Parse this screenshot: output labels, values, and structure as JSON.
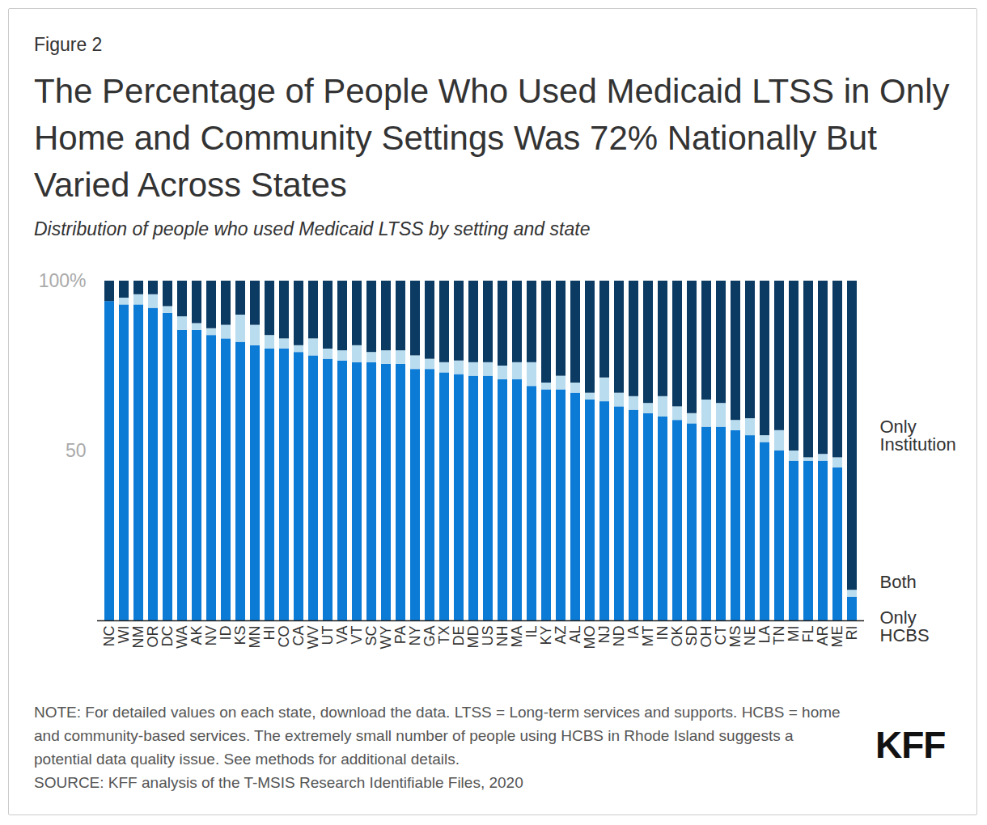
{
  "chart_data": {
    "type": "bar",
    "figure_label": "Figure 2",
    "title": "The Percentage of People Who Used Medicaid LTSS in Only Home and Community Settings Was 72% Nationally But Varied Across States",
    "subtitle": "Distribution of people who used Medicaid LTSS by setting and state",
    "note": "NOTE: For detailed values on each state, download the data. LTSS = Long-term services and supports. HCBS = home and community-based services. The extremely small number of people using HCBS in Rhode Island suggests a potential data quality issue. See methods for additional details.",
    "source": "SOURCE: KFF analysis of the T-MSIS Research Identifiable Files, 2020",
    "logo": "KFF",
    "stacked": true,
    "legend": "right",
    "grid": false,
    "categories": [
      "NC",
      "WI",
      "NM",
      "OR",
      "DC",
      "WA",
      "AK",
      "NV",
      "ID",
      "KS",
      "MN",
      "HI",
      "CO",
      "CA",
      "WV",
      "UT",
      "VA",
      "VT",
      "SC",
      "WY",
      "PA",
      "NY",
      "GA",
      "TX",
      "DE",
      "MD",
      "US",
      "NH",
      "MA",
      "IL",
      "KY",
      "AZ",
      "AL",
      "MO",
      "NJ",
      "ND",
      "IA",
      "MT",
      "IN",
      "OK",
      "SD",
      "OH",
      "CT",
      "MS",
      "NE",
      "LA",
      "TN",
      "MI",
      "FL",
      "AR",
      "ME",
      "RI"
    ],
    "series": [
      {
        "name": "Only HCBS",
        "color": "#0c7bd6",
        "values": [
          94,
          93,
          93,
          92,
          90.5,
          85.5,
          85.5,
          84,
          83,
          82,
          81,
          80,
          80,
          79,
          78,
          77,
          76.5,
          76,
          76,
          75.5,
          75.5,
          74,
          74,
          73,
          72.5,
          72,
          72,
          71,
          71,
          69,
          68,
          68,
          67,
          65,
          64.5,
          63,
          62,
          61,
          60,
          59,
          58,
          57,
          57,
          56,
          54.5,
          52.5,
          50,
          47,
          47,
          47,
          45,
          7
        ]
      },
      {
        "name": "Both",
        "color": "#b9dcef",
        "values": [
          0,
          2,
          3,
          4,
          2,
          4,
          2,
          2,
          4,
          8,
          6,
          4,
          3,
          2,
          5,
          3,
          3,
          5,
          3,
          4,
          4,
          4,
          3,
          3,
          4,
          4,
          4,
          4,
          5,
          7,
          2,
          4,
          3,
          2,
          7,
          4,
          4,
          3,
          6,
          4,
          3,
          8,
          7,
          3,
          5,
          2,
          6,
          3,
          1,
          2,
          3,
          2
        ]
      },
      {
        "name": "Only Institution",
        "color": "#0b3a62",
        "values": [
          6,
          5,
          4,
          4,
          7.5,
          10.5,
          12.5,
          14,
          13,
          10,
          13,
          16,
          17,
          19,
          17,
          20,
          20.5,
          19,
          21,
          20.5,
          20.5,
          22,
          23,
          24,
          23.5,
          24,
          24,
          25,
          24,
          24,
          30,
          28,
          30,
          33,
          28.5,
          33,
          34,
          36,
          34,
          37,
          39,
          35,
          36,
          41,
          40.5,
          45.5,
          44,
          50,
          52,
          51,
          52,
          91
        ]
      }
    ],
    "ylim": [
      0,
      100
    ],
    "yticks": [
      50,
      {
        "value": 100,
        "label": "100%"
      }
    ]
  }
}
